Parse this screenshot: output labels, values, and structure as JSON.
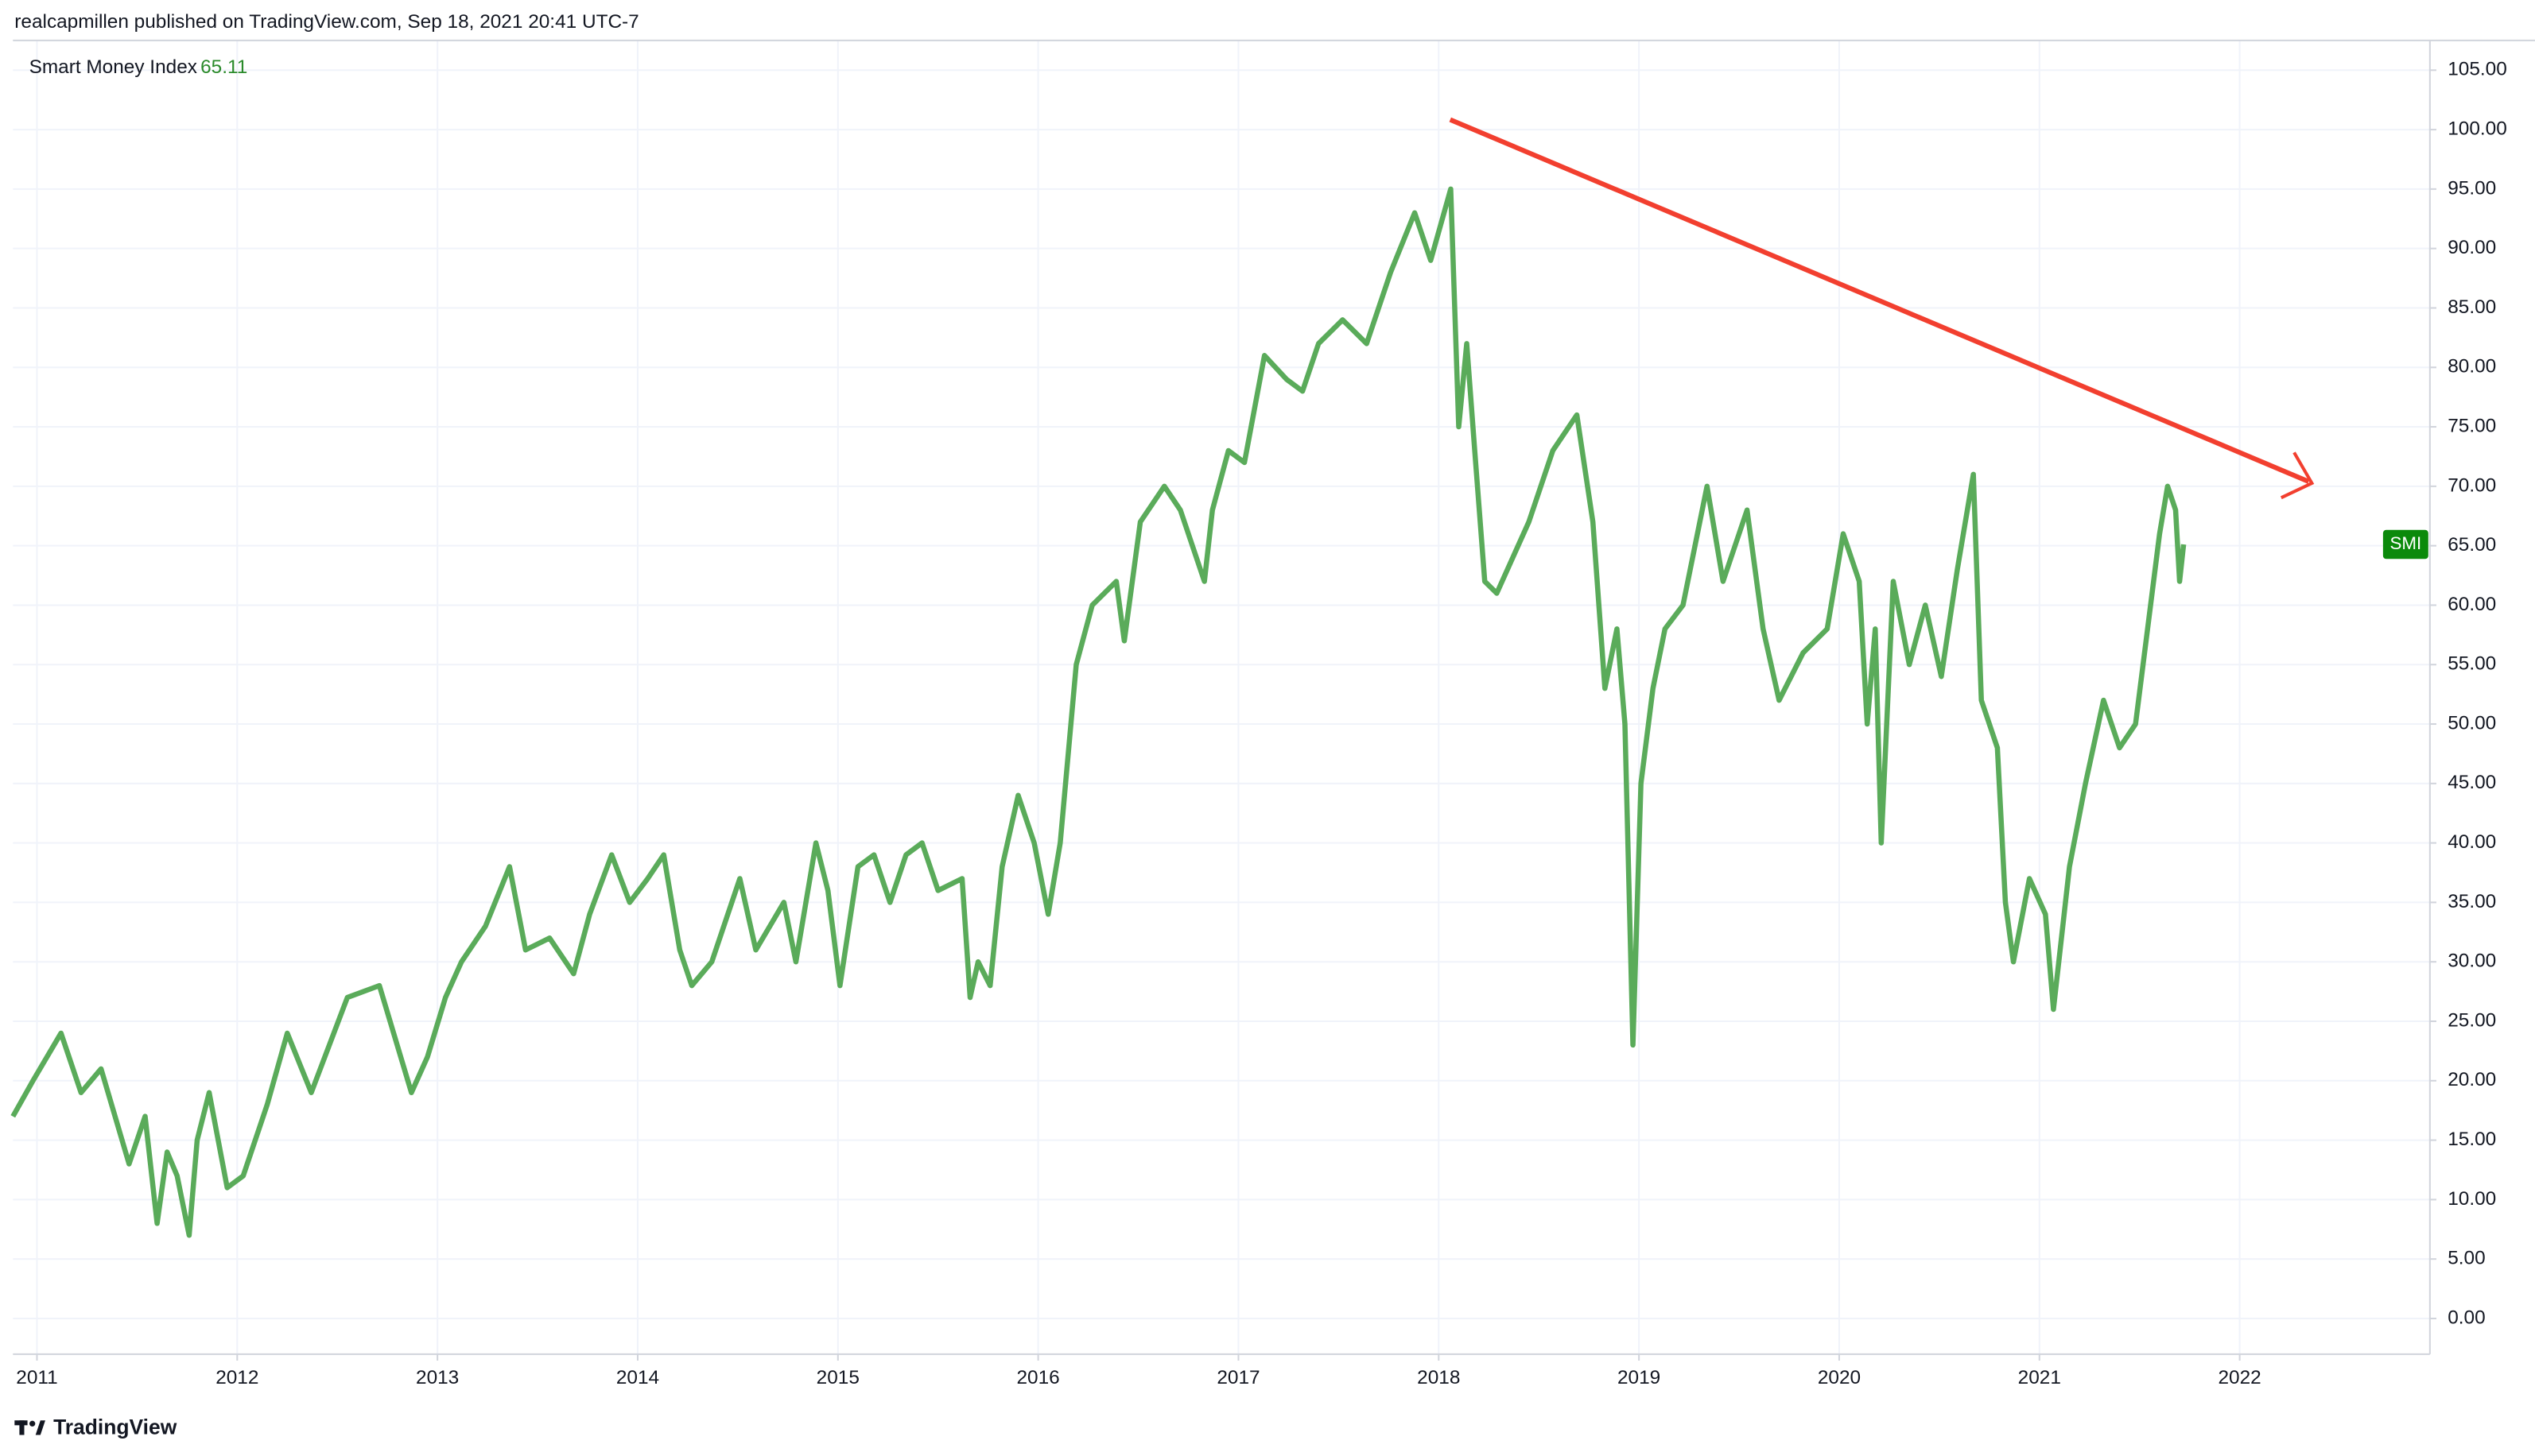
{
  "header": {
    "byline": "realcapmillen published on TradingView.com, Sep 18, 2021 20:41 UTC-7"
  },
  "footer": {
    "brand": "TradingView"
  },
  "chart_data": {
    "type": "line",
    "last_value": 65.11,
    "badge": "SMI",
    "series": [
      {
        "name": "Smart Money Index",
        "color": "#5aab5a",
        "x": [
          2010.88,
          2010.98,
          2011.12,
          2011.22,
          2011.32,
          2011.46,
          2011.54,
          2011.6,
          2011.65,
          2011.7,
          2011.76,
          2011.8,
          2011.86,
          2011.95,
          2012.03,
          2012.15,
          2012.25,
          2012.37,
          2012.55,
          2012.71,
          2012.87,
          2012.95,
          2013.04,
          2013.12,
          2013.24,
          2013.36,
          2013.44,
          2013.56,
          2013.68,
          2013.76,
          2013.87,
          2013.96,
          2014.05,
          2014.13,
          2014.21,
          2014.27,
          2014.37,
          2014.51,
          2014.59,
          2014.73,
          2014.79,
          2014.89,
          2014.95,
          2015.01,
          2015.1,
          2015.18,
          2015.26,
          2015.34,
          2015.42,
          2015.5,
          2015.62,
          2015.66,
          2015.7,
          2015.76,
          2015.82,
          2015.9,
          2015.98,
          2016.05,
          2016.11,
          2016.19,
          2016.27,
          2016.39,
          2016.43,
          2016.51,
          2016.63,
          2016.71,
          2016.83,
          2016.87,
          2016.95,
          2017.03,
          2017.13,
          2017.24,
          2017.32,
          2017.4,
          2017.52,
          2017.64,
          2017.76,
          2017.88,
          2017.96,
          2018.06,
          2018.1,
          2018.14,
          2018.18,
          2018.23,
          2018.29,
          2018.37,
          2018.45,
          2018.49,
          2018.57,
          2018.69,
          2018.77,
          2018.83,
          2018.89,
          2018.93,
          2018.97,
          2019.01,
          2019.07,
          2019.13,
          2019.22,
          2019.34,
          2019.42,
          2019.54,
          2019.62,
          2019.7,
          2019.82,
          2019.94,
          2020.02,
          2020.1,
          2020.14,
          2020.18,
          2020.21,
          2020.27,
          2020.35,
          2020.43,
          2020.51,
          2020.59,
          2020.67,
          2020.71,
          2020.79,
          2020.83,
          2020.87,
          2020.95,
          2021.03,
          2021.07,
          2021.15,
          2021.23,
          2021.32,
          2021.4,
          2021.48,
          2021.54,
          2021.6,
          2021.64,
          2021.68,
          2021.7,
          2021.72
        ],
        "values": [
          17,
          20,
          24,
          19,
          21,
          13,
          17,
          8,
          14,
          12,
          7,
          15,
          19,
          11,
          12,
          18,
          24,
          19,
          27,
          28,
          19,
          22,
          27,
          30,
          33,
          38,
          31,
          32,
          29,
          34,
          39,
          35,
          37,
          39,
          31,
          28,
          30,
          37,
          31,
          35,
          30,
          40,
          36,
          28,
          38,
          39,
          35,
          39,
          40,
          36,
          37,
          27,
          30,
          28,
          38,
          44,
          40,
          34,
          40,
          55,
          60,
          62,
          57,
          67,
          70,
          68,
          62,
          68,
          73,
          72,
          81,
          79,
          78,
          82,
          84,
          82,
          88,
          93,
          89,
          95,
          75,
          82,
          73,
          62,
          61,
          64,
          67,
          69,
          73,
          76,
          67,
          53,
          58,
          50,
          23,
          45,
          53,
          58,
          60,
          70,
          62,
          68,
          58,
          52,
          56,
          58,
          66,
          62,
          50,
          58,
          40,
          62,
          55,
          60,
          54,
          63,
          71,
          52,
          48,
          35,
          30,
          37,
          34,
          26,
          38,
          45,
          52,
          48,
          50,
          58,
          66,
          70,
          68,
          62,
          65.11
        ]
      }
    ],
    "xlim": [
      2010.88,
      2022.95
    ],
    "ylim": [
      -3,
      107.5
    ],
    "xticks": [
      2011,
      2012,
      2013,
      2014,
      2015,
      2016,
      2017,
      2018,
      2019,
      2020,
      2021,
      2022
    ],
    "yticks": [
      {
        "value": 0,
        "label": "0.00"
      },
      {
        "value": 5,
        "label": "5.00"
      },
      {
        "value": 10,
        "label": "10.00"
      },
      {
        "value": 15,
        "label": "15.00"
      },
      {
        "value": 20,
        "label": "20.00"
      },
      {
        "value": 25,
        "label": "25.00"
      },
      {
        "value": 30,
        "label": "30.00"
      },
      {
        "value": 35,
        "label": "35.00"
      },
      {
        "value": 40,
        "label": "40.00"
      },
      {
        "value": 45,
        "label": "45.00"
      },
      {
        "value": 50,
        "label": "50.00"
      },
      {
        "value": 55,
        "label": "55.00"
      },
      {
        "value": 60,
        "label": "60.00"
      },
      {
        "value": 65,
        "label": "65.00"
      },
      {
        "value": 70,
        "label": "70.00"
      },
      {
        "value": 75,
        "label": "75.00"
      },
      {
        "value": 80,
        "label": "80.00"
      },
      {
        "value": 85,
        "label": "85.00"
      },
      {
        "value": 90,
        "label": "90.00"
      },
      {
        "value": 95,
        "label": "95.00"
      },
      {
        "value": 100,
        "label": "100.00"
      },
      {
        "value": 105,
        "label": "105.00"
      }
    ],
    "grid": true
  }
}
